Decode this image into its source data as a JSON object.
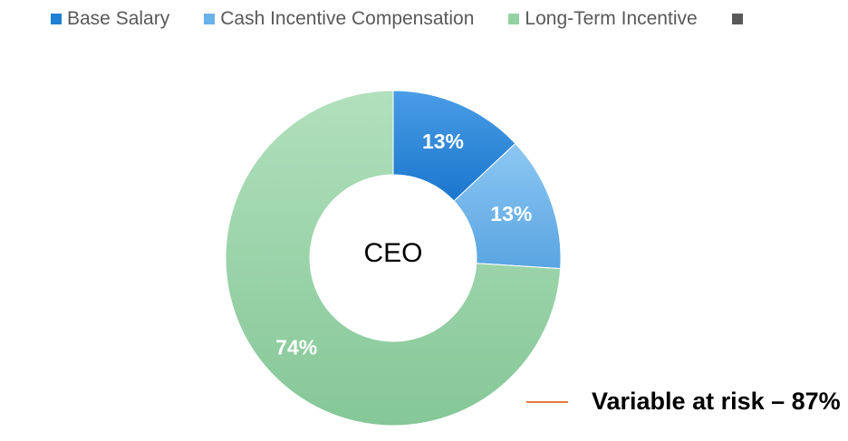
{
  "chart_data": {
    "type": "pie",
    "variant": "donut",
    "center_label": "CEO",
    "categories": [
      "Base Salary",
      "Cash Incentive Compensation",
      "Long-Term Incentive",
      ""
    ],
    "values": [
      13,
      13,
      74,
      0
    ],
    "data_labels": [
      "13%",
      "13%",
      "74%",
      ""
    ],
    "colors": [
      "#1f7fd4",
      "#6ab2ea",
      "#93d1a2",
      "#595959"
    ],
    "legend_position": "top",
    "annotation": {
      "text": "Variable at risk – 87%",
      "line_color": "#e07b39"
    }
  }
}
